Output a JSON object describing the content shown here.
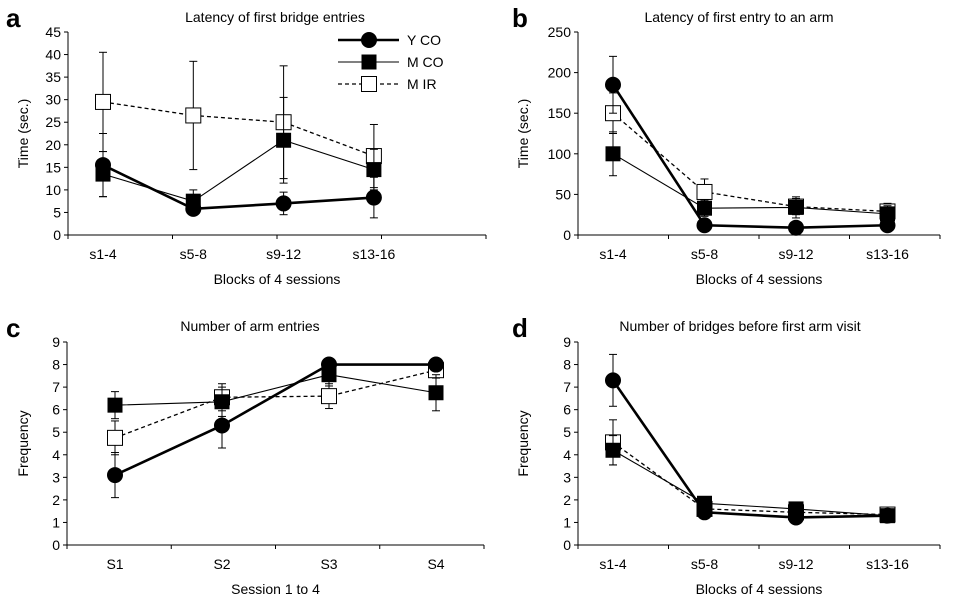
{
  "chart_data": [
    {
      "panel": "a",
      "type": "line",
      "title": "Latency of first bridge entries",
      "xlabel": "Blocks of 4 sessions",
      "ylabel": "Time (sec.)",
      "categories": [
        "s1-4",
        "s5-8",
        "s9-12",
        "s13-16"
      ],
      "ylim": [
        0,
        45
      ],
      "yticks": [
        0,
        5,
        10,
        15,
        20,
        25,
        30,
        35,
        40,
        45
      ],
      "legend_position": "top-right",
      "series": [
        {
          "name": "Y CO",
          "values": [
            15.5,
            5.8,
            7.0,
            8.3
          ],
          "err": [
            7.0,
            1.0,
            2.5,
            4.5
          ],
          "marker": "filled-circle",
          "line": "thick-solid"
        },
        {
          "name": "M CO",
          "values": [
            13.5,
            7.5,
            21.0,
            14.5
          ],
          "err": [
            5.0,
            2.5,
            9.5,
            4.5
          ],
          "marker": "filled-square",
          "line": "thin-solid"
        },
        {
          "name": "M IR",
          "values": [
            29.5,
            26.5,
            25.0,
            17.5
          ],
          "err": [
            11.0,
            12.0,
            12.5,
            7.0
          ],
          "marker": "open-square",
          "line": "dashed"
        }
      ]
    },
    {
      "panel": "b",
      "type": "line",
      "title": "Latency of first entry to an arm",
      "xlabel": "Blocks of 4 sessions",
      "ylabel": "Time (sec.)",
      "categories": [
        "s1-4",
        "s5-8",
        "s9-12",
        "s13-16"
      ],
      "ylim": [
        0,
        250
      ],
      "yticks": [
        0,
        50,
        100,
        150,
        200,
        250
      ],
      "series": [
        {
          "name": "Y CO",
          "values": [
            185,
            12,
            9,
            12
          ],
          "err": [
            35,
            4,
            3,
            4
          ],
          "marker": "filled-circle",
          "line": "thick-solid"
        },
        {
          "name": "M CO",
          "values": [
            100,
            33,
            34,
            26
          ],
          "err": [
            27,
            10,
            13,
            10
          ],
          "marker": "filled-square",
          "line": "thin-solid"
        },
        {
          "name": "M IR",
          "values": [
            150,
            53,
            35,
            29
          ],
          "err": [
            25,
            16,
            10,
            10
          ],
          "marker": "open-square",
          "line": "dashed"
        }
      ]
    },
    {
      "panel": "c",
      "type": "line",
      "title": "Number of arm entries",
      "xlabel": "Session 1 to 4",
      "ylabel": "Frequency",
      "categories": [
        "S1",
        "S2",
        "S3",
        "S4"
      ],
      "ylim": [
        0,
        9
      ],
      "yticks": [
        0,
        1,
        2,
        3,
        4,
        5,
        6,
        7,
        8,
        9
      ],
      "series": [
        {
          "name": "Y CO",
          "values": [
            3.1,
            5.3,
            8.0,
            8.0
          ],
          "err": [
            1.0,
            1.0,
            0.0,
            0.0
          ],
          "marker": "filled-circle",
          "line": "thick-solid"
        },
        {
          "name": "M CO",
          "values": [
            6.2,
            6.35,
            7.55,
            6.75
          ],
          "err": [
            0.6,
            0.65,
            0.5,
            0.8
          ],
          "marker": "filled-square",
          "line": "thin-solid"
        },
        {
          "name": "M IR",
          "values": [
            4.75,
            6.55,
            6.6,
            7.75
          ],
          "err": [
            0.75,
            0.6,
            0.55,
            0.35
          ],
          "marker": "open-square",
          "line": "dashed"
        }
      ]
    },
    {
      "panel": "d",
      "type": "line",
      "title": "Number of bridges before first arm visit",
      "xlabel": "Blocks of 4 sessions",
      "ylabel": "Frequency",
      "categories": [
        "s1-4",
        "s5-8",
        "s9-12",
        "s13-16"
      ],
      "ylim": [
        0,
        9
      ],
      "yticks": [
        0,
        1,
        2,
        3,
        4,
        5,
        6,
        7,
        8,
        9
      ],
      "series": [
        {
          "name": "Y CO",
          "values": [
            7.3,
            1.45,
            1.22,
            1.3
          ],
          "err": [
            1.15,
            0.1,
            0.1,
            0.1
          ],
          "marker": "filled-circle",
          "line": "thick-solid"
        },
        {
          "name": "M CO",
          "values": [
            4.2,
            1.85,
            1.6,
            1.3
          ],
          "err": [
            0.65,
            0.1,
            0.1,
            0.1
          ],
          "marker": "filled-square",
          "line": "thin-solid"
        },
        {
          "name": "M IR",
          "values": [
            4.55,
            1.6,
            1.45,
            1.35
          ],
          "err": [
            1.0,
            0.15,
            0.15,
            0.1
          ],
          "marker": "open-square",
          "line": "dashed"
        }
      ]
    }
  ]
}
